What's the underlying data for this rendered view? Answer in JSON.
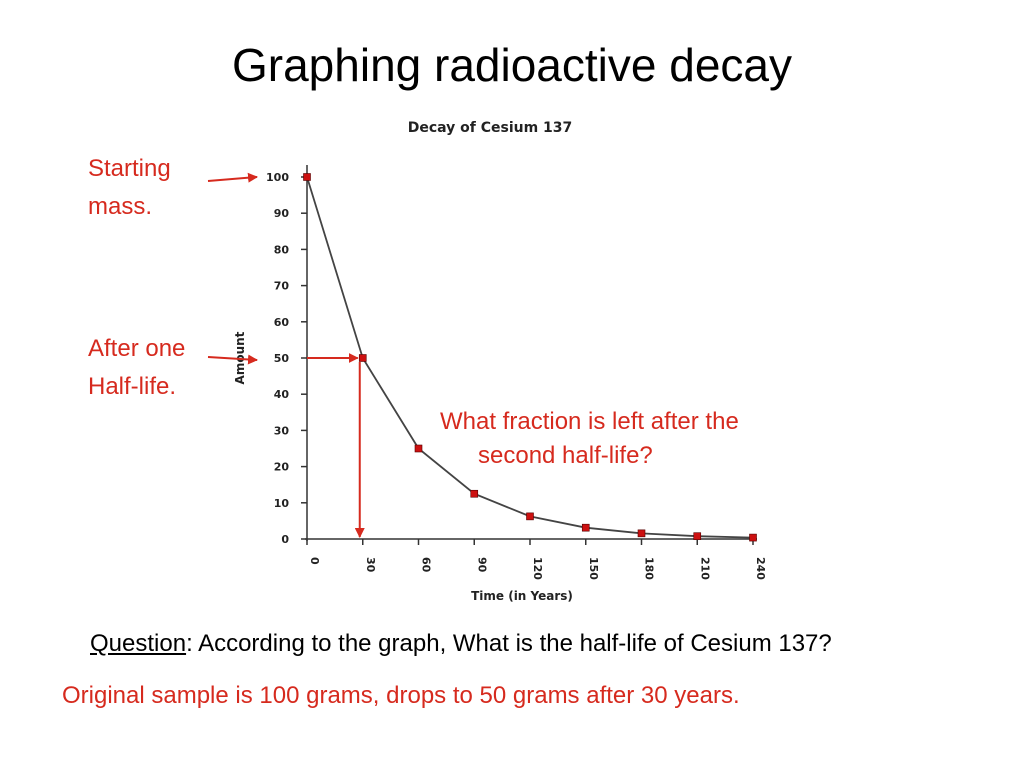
{
  "slide": {
    "title": "Graphing radioactive decay",
    "annotations": {
      "starting_mass": [
        "Starting",
        "mass."
      ],
      "after_half_life": [
        "After one",
        "Half-life."
      ],
      "question_fraction": [
        "What fraction is left after the",
        "second half-life?"
      ]
    },
    "question": {
      "label": "Question",
      "text": ": According to the graph, What is the half-life of Cesium 137?"
    },
    "answer": "Original sample is 100 grams, drops to 50 grams after 30 years.",
    "colors": {
      "accent": "#d62a1e",
      "marker": "#cc1111",
      "line": "#444444"
    }
  },
  "chart_data": {
    "type": "line",
    "title": "Decay of Cesium 137",
    "xlabel": "Time (in Years)",
    "ylabel": "Amount",
    "x": [
      0,
      30,
      60,
      90,
      120,
      150,
      180,
      210,
      240
    ],
    "series": [
      {
        "values": [
          100,
          50,
          25,
          12.5,
          6.25,
          3.125,
          1.5625,
          0.78,
          0.39
        ]
      }
    ],
    "xticks": [
      "0",
      "30",
      "60",
      "90",
      "120",
      "150",
      "180",
      "210",
      "240"
    ],
    "yticks": [
      "0",
      "10",
      "20",
      "30",
      "40",
      "50",
      "60",
      "70",
      "80",
      "90",
      "100"
    ],
    "xlim": [
      0,
      240
    ],
    "ylim": [
      0,
      100
    ],
    "grid": false,
    "half_life_marker": {
      "x": 30,
      "y": 50
    }
  }
}
